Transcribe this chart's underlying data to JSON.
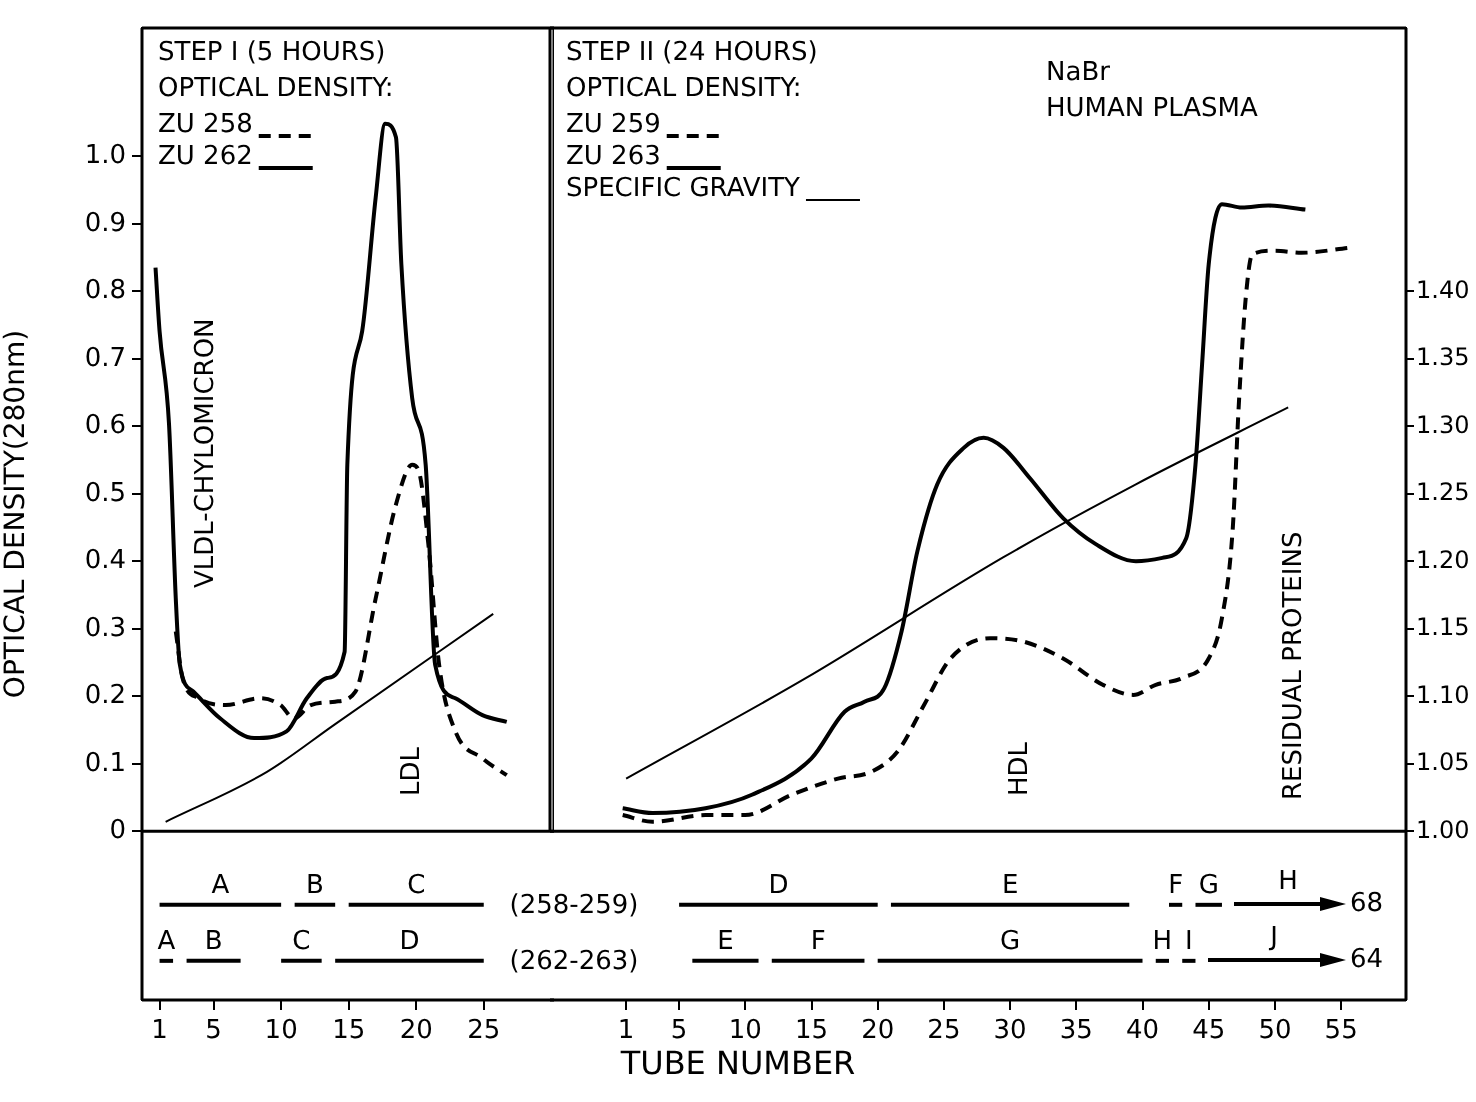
{
  "chart_data": [
    {
      "type": "line",
      "title": "STEP I (5 HOURS)",
      "legend_title": "OPTICAL DENSITY:",
      "legend": "top left",
      "xlabel": "TUBE NUMBER",
      "ylabel": "OPTICAL DENSITY(280nm)",
      "marker": "none",
      "xlim": [
        -0.3,
        30.2
      ],
      "xticks": [
        1,
        5,
        10,
        15,
        20,
        25
      ],
      "ylim": [
        -0.25,
        1.19
      ],
      "yticks": [
        0,
        0.1,
        0.2,
        0.3,
        0.4,
        0.5,
        0.6,
        0.7,
        0.8,
        0.9,
        {
          "value": 1,
          "label": "1.0"
        }
      ],
      "y2lim": [
        0.875,
        1.595
      ],
      "ref_lines": [
        {
          "axis": "y",
          "value": 0
        }
      ],
      "annotations": [
        "VLDL-CHYLOMICRON",
        "LDL",
        {
          "text": "A",
          "x": 5.5,
          "y": -0.109
        },
        {
          "text": "B",
          "x": 12.5,
          "y": -0.109
        },
        {
          "text": "C",
          "x": 20,
          "y": -0.109
        },
        {
          "text": "A",
          "x": 1.5,
          "y": -0.192
        },
        {
          "text": "B",
          "x": 5,
          "y": -0.192
        },
        {
          "text": "C",
          "x": 11.5,
          "y": -0.192
        },
        {
          "text": "D",
          "x": 19.5,
          "y": -0.192
        }
      ],
      "series": [
        {
          "name": "ZU 258",
          "color": "#000000",
          "line_style": "dashed",
          "x": [
            2.2,
            2.7,
            3.9,
            5.9,
            8.45,
            9.95,
            10.95,
            12.2,
            14.0,
            15.5,
            17.0,
            18.5,
            19.7,
            20.2,
            20.9,
            21.7,
            22.9,
            24.9,
            26.7
          ],
          "values": [
            0.296,
            0.227,
            0.197,
            0.187,
            0.197,
            0.187,
            0.167,
            0.187,
            0.192,
            0.207,
            0.345,
            0.484,
            0.543,
            0.533,
            0.425,
            0.246,
            0.148,
            0.108,
            0.083
          ]
        },
        {
          "name": "ZU 262",
          "color": "#000000",
          "line_style": "solid",
          "x": [
            0.7,
            1.0,
            1.7,
            2.2,
            2.5,
            3.5,
            5.5,
            8.0,
            10.4,
            11.9,
            13.4,
            14.7,
            14.9,
            16.0,
            17.0,
            17.7,
            18.5,
            18.9,
            19.7,
            20.7,
            21.4,
            22.9,
            24.9,
            26.7
          ],
          "values": [
            0.835,
            0.741,
            0.603,
            0.345,
            0.247,
            0.207,
            0.167,
            0.138,
            0.148,
            0.197,
            0.227,
            0.266,
            0.543,
            0.741,
            0.939,
            1.048,
            1.028,
            0.84,
            0.642,
            0.543,
            0.247,
            0.197,
            0.172,
            0.162
          ]
        },
        {
          "color": "#000000",
          "axis": "y2",
          "line_style": "solid",
          "x": [
            1.45,
            8.95,
            13.95,
            25.7
          ],
          "values": [
            1.007,
            1.044,
            1.079,
            1.161
          ]
        },
        {
          "color": "#000000",
          "line_style": "solid",
          "x": [
            1,
            10
          ],
          "values": [
            -0.109,
            -0.109
          ]
        },
        {
          "color": "#000000",
          "line_style": "solid",
          "x": [
            11,
            14
          ],
          "values": [
            -0.109,
            -0.109
          ]
        },
        {
          "color": "#000000",
          "line_style": "solid",
          "x": [
            15,
            25
          ],
          "values": [
            -0.109,
            -0.109
          ]
        },
        {
          "color": "#000000",
          "line_style": "solid",
          "x": [
            1,
            2
          ],
          "values": [
            -0.192,
            -0.192
          ]
        },
        {
          "color": "#000000",
          "line_style": "solid",
          "x": [
            3,
            7
          ],
          "values": [
            -0.192,
            -0.192
          ]
        },
        {
          "color": "#000000",
          "line_style": "solid",
          "x": [
            10,
            13
          ],
          "values": [
            -0.192,
            -0.192
          ]
        },
        {
          "color": "#000000",
          "line_style": "solid",
          "x": [
            14,
            25
          ],
          "values": [
            -0.192,
            -0.192
          ]
        }
      ]
    },
    {
      "type": "line",
      "title": "STEP II (24 HOURS)",
      "legend_title": "OPTICAL DENSITY:",
      "legend": "top left",
      "marker": "none",
      "xlim": [
        -4.75,
        59.9
      ],
      "xticks": [
        1,
        5,
        10,
        15,
        20,
        25,
        30,
        35,
        40,
        45,
        50,
        55
      ],
      "ylim": [
        -0.25,
        1.19
      ],
      "y2lim": [
        0.875,
        1.595
      ],
      "y2ticks": [
        {
          "value": 1,
          "label": "1.00"
        },
        1.05,
        {
          "value": 1.1,
          "label": "1.10"
        },
        1.15,
        {
          "value": 1.2,
          "label": "1.20"
        },
        1.25,
        {
          "value": 1.3,
          "label": "1.30"
        },
        1.35,
        {
          "value": 1.4,
          "label": "1.40"
        }
      ],
      "ref_lines": [
        {
          "axis": "y",
          "value": 0
        }
      ],
      "annotations": [
        "NaBr",
        "HUMAN PLASMA",
        "HDL",
        "RESIDUAL PROTEINS",
        "(258-259)",
        "(262-263)",
        "68",
        "64",
        "H",
        "J",
        {
          "text": "D",
          "x": 12.5,
          "y": -0.109
        },
        {
          "text": "E",
          "x": 30,
          "y": -0.109
        },
        {
          "text": "F",
          "x": 42.5,
          "y": -0.109
        },
        {
          "text": "G",
          "x": 45,
          "y": -0.109
        },
        {
          "text": "E",
          "x": 8.5,
          "y": -0.192
        },
        {
          "text": "F",
          "x": 15.5,
          "y": -0.192
        },
        {
          "text": "G",
          "x": 30,
          "y": -0.192
        },
        {
          "text": "H",
          "x": 41.5,
          "y": -0.192
        },
        {
          "text": "I",
          "x": 43.5,
          "y": -0.192
        }
      ],
      "series": [
        {
          "name": "ZU 259",
          "color": "#000000",
          "line_style": "dashed",
          "x": [
            0.74,
            2.99,
            6.99,
            9.99,
            13.5,
            17.0,
            19.5,
            21.5,
            23.5,
            25.5,
            28.5,
            31.0,
            34.0,
            37.0,
            39.3,
            41.0,
            43.0,
            45.0,
            46.0,
            46.8,
            47.3,
            47.8,
            48.3,
            50.0,
            52.0,
            55.8
          ],
          "values": [
            0.024,
            0.014,
            0.024,
            0.024,
            0.054,
            0.078,
            0.088,
            0.118,
            0.187,
            0.256,
            0.286,
            0.281,
            0.256,
            0.217,
            0.202,
            0.217,
            0.227,
            0.256,
            0.316,
            0.444,
            0.642,
            0.791,
            0.855,
            0.86,
            0.857,
            0.865
          ]
        },
        {
          "name": "ZU 263",
          "color": "#000000",
          "line_style": "solid",
          "x": [
            0.74,
            2.99,
            6.99,
            10.5,
            15.0,
            17.5,
            19.0,
            20.5,
            21.8,
            23.0,
            24.5,
            26.5,
            28.0,
            29.5,
            31.5,
            34.0,
            36.5,
            39.5,
            41.5,
            43.3,
            44.0,
            44.5,
            45.0,
            46.0,
            47.5,
            49.5,
            52.3
          ],
          "values": [
            0.034,
            0.027,
            0.034,
            0.054,
            0.108,
            0.177,
            0.192,
            0.212,
            0.296,
            0.415,
            0.514,
            0.568,
            0.583,
            0.568,
            0.523,
            0.464,
            0.425,
            0.4,
            0.405,
            0.434,
            0.543,
            0.692,
            0.84,
            0.929,
            0.924,
            0.927,
            0.921
          ]
        },
        {
          "name": "SPECIFIC GRAVITY",
          "color": "#000000",
          "axis": "y2",
          "line_style": "solid",
          "x": [
            1.0,
            14.5,
            29.5,
            39.5,
            51.0
          ],
          "values": [
            1.039,
            1.113,
            1.203,
            1.257,
            1.314
          ]
        },
        {
          "color": "#000000",
          "line_style": "solid",
          "x": [
            5,
            20
          ],
          "values": [
            -0.109,
            -0.109
          ]
        },
        {
          "color": "#000000",
          "line_style": "solid",
          "x": [
            21,
            39
          ],
          "values": [
            -0.109,
            -0.109
          ]
        },
        {
          "color": "#000000",
          "line_style": "solid",
          "x": [
            42,
            43
          ],
          "values": [
            -0.109,
            -0.109
          ]
        },
        {
          "color": "#000000",
          "line_style": "solid",
          "x": [
            44,
            46
          ],
          "values": [
            -0.109,
            -0.109
          ]
        },
        {
          "color": "#000000",
          "line_style": "solid",
          "x": [
            6,
            11
          ],
          "values": [
            -0.192,
            -0.192
          ]
        },
        {
          "color": "#000000",
          "line_style": "solid",
          "x": [
            12,
            19
          ],
          "values": [
            -0.192,
            -0.192
          ]
        },
        {
          "color": "#000000",
          "line_style": "solid",
          "x": [
            20,
            40
          ],
          "values": [
            -0.192,
            -0.192
          ]
        },
        {
          "color": "#000000",
          "line_style": "solid",
          "x": [
            41,
            42
          ],
          "values": [
            -0.192,
            -0.192
          ]
        },
        {
          "color": "#000000",
          "line_style": "solid",
          "x": [
            43,
            44
          ],
          "values": [
            -0.192,
            -0.192
          ]
        }
      ]
    }
  ]
}
